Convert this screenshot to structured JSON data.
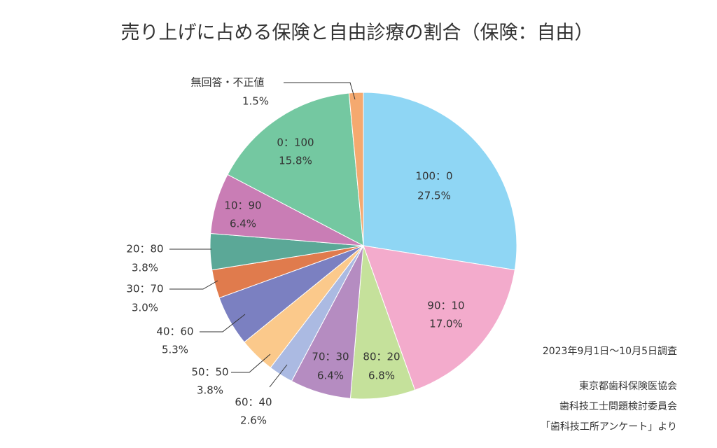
{
  "chart_data": {
    "type": "pie",
    "title": "売り上げに占める保険と自由診療の割合（保険：自由）",
    "categories": [
      "100：0",
      "90：10",
      "80：20",
      "70：30",
      "60：40",
      "50：50",
      "40：60",
      "30：70",
      "20：80",
      "10：90",
      "0：100",
      "無回答・不正値"
    ],
    "values": [
      27.5,
      17.0,
      6.8,
      6.4,
      2.6,
      3.8,
      5.3,
      3.0,
      3.8,
      6.4,
      15.8,
      1.5
    ],
    "value_labels": [
      "27.5%",
      "17.0%",
      "6.8%",
      "6.4%",
      "2.6%",
      "3.8%",
      "5.3%",
      "3.0%",
      "3.8%",
      "6.4%",
      "15.8%",
      "1.5%"
    ],
    "colors": [
      "#8fd6f4",
      "#f3abcc",
      "#c5e19b",
      "#b58cc1",
      "#abbae2",
      "#fbc98b",
      "#7b80c1",
      "#e07b4d",
      "#5ba897",
      "#c97db5",
      "#74c8a1",
      "#f5a96f"
    ],
    "note": "2023年9月1日～10月5日調査",
    "source": [
      "東京都歯科保険医協会",
      "歯科技工士問題検討委員会",
      "「歯科技工所アンケート」より"
    ]
  }
}
